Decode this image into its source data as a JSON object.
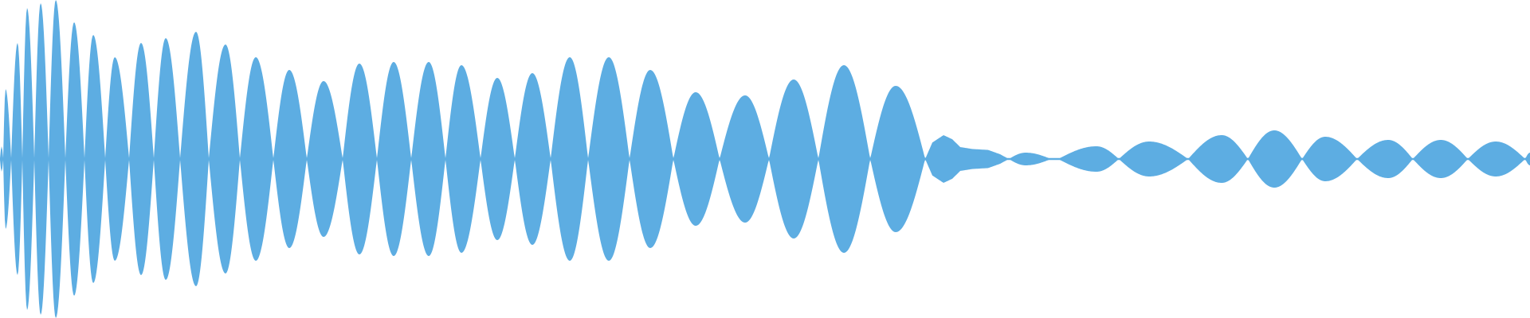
{
  "waveform": {
    "color": "#5DADE2",
    "background": "#FFFFFF",
    "peak_amplitudes": [
      0.08,
      0.44,
      0.73,
      0.95,
      0.98,
      1.0,
      0.86,
      0.78,
      0.64,
      0.73,
      0.76,
      0.8,
      0.72,
      0.64,
      0.56,
      0.49,
      0.6,
      0.61,
      0.61,
      0.59,
      0.51,
      0.54,
      0.64,
      0.64,
      0.56,
      0.42,
      0.4,
      0.5,
      0.59,
      0.46,
      0.15,
      0.04,
      0.08,
      0.11,
      0.15,
      0.18,
      0.14,
      0.12,
      0.12,
      0.11,
      0.04
    ]
  }
}
